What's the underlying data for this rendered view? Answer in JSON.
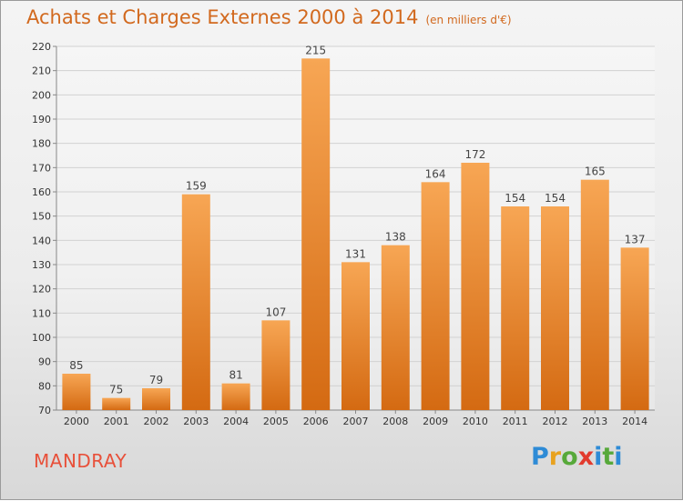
{
  "title": "Achats et Charges Externes 2000 à 2014",
  "subtitle": "(en milliers d'€)",
  "commune": "MANDRAY",
  "logo": "Proxiti",
  "colors": {
    "bar_light": "#f7a654",
    "bar_dark": "#d46a12",
    "title": "#d2691e",
    "commune": "#e8503a"
  },
  "chart_data": {
    "type": "bar",
    "categories": [
      "2000",
      "2001",
      "2002",
      "2003",
      "2004",
      "2005",
      "2006",
      "2007",
      "2008",
      "2009",
      "2010",
      "2011",
      "2012",
      "2013",
      "2014"
    ],
    "values": [
      85,
      75,
      79,
      159,
      81,
      107,
      215,
      131,
      138,
      164,
      172,
      154,
      154,
      165,
      137
    ],
    "ylim": [
      70,
      220
    ],
    "yticks": [
      70,
      80,
      90,
      100,
      110,
      120,
      130,
      140,
      150,
      160,
      170,
      180,
      190,
      200,
      210,
      220
    ],
    "grid": true,
    "legend": "none"
  }
}
